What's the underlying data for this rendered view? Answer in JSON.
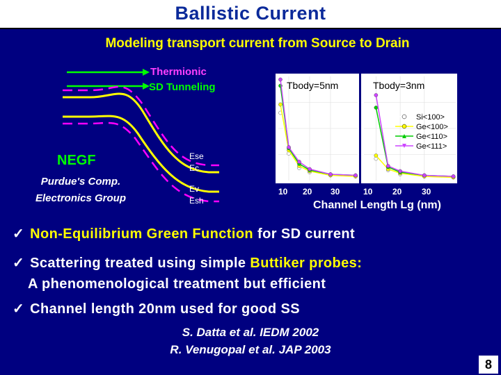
{
  "slide": {
    "title": "Ballistic Current",
    "subtitle": "Modeling transport current from Source to Drain",
    "page_number": "8"
  },
  "band_diagram": {
    "arrow_labels": [
      "Thermionic",
      "SD Tunneling"
    ],
    "method_label": "NEGF",
    "group_label_line1": "Purdue's Comp.",
    "group_label_line2": "Electronics Group",
    "band_labels": [
      "Ese",
      "Ec",
      "Ev",
      "Esh"
    ],
    "colors": {
      "arrow": "#00ff00",
      "band": "#ffff00",
      "dashed": "#ff00ff",
      "text": "#00ff00"
    }
  },
  "chart_data": {
    "type": "line",
    "xlabel": "Channel Length Lg (nm)",
    "panels": [
      {
        "label": "Tbody=5nm",
        "x_ticks": [
          "10",
          "20",
          "30"
        ]
      },
      {
        "label": "Tbody=3nm",
        "x_ticks": [
          "10",
          "20",
          "30"
        ]
      }
    ],
    "legend_position": "top-right",
    "series": [
      {
        "name": "Si<100>",
        "color": "#ffffff",
        "panel1": [
          [
            6,
            65
          ],
          [
            10,
            26
          ],
          [
            15,
            12
          ],
          [
            20,
            8
          ],
          [
            30,
            5
          ],
          [
            42,
            4
          ]
        ],
        "panel2": [
          [
            10,
            21
          ],
          [
            15,
            10
          ],
          [
            20,
            6
          ],
          [
            30,
            4
          ],
          [
            42,
            3
          ]
        ]
      },
      {
        "name": "Ge<100>",
        "color": "#ffff00",
        "panel1": [
          [
            6,
            73
          ],
          [
            10,
            29
          ],
          [
            15,
            14
          ],
          [
            20,
            9
          ],
          [
            30,
            5
          ],
          [
            42,
            4
          ]
        ],
        "panel2": [
          [
            10,
            24
          ],
          [
            15,
            11
          ],
          [
            20,
            7
          ],
          [
            30,
            4
          ],
          [
            42,
            3
          ]
        ]
      },
      {
        "name": "Ge<110>",
        "color": "#00cc00",
        "panel1": [
          [
            6,
            91
          ],
          [
            10,
            31
          ],
          [
            15,
            16
          ],
          [
            20,
            10
          ],
          [
            30,
            6
          ],
          [
            42,
            5
          ]
        ],
        "panel2": [
          [
            10,
            70
          ],
          [
            15,
            13
          ],
          [
            20,
            8
          ],
          [
            30,
            5
          ],
          [
            42,
            4
          ]
        ]
      },
      {
        "name": "Ge<111>",
        "color": "#cc44ff",
        "panel1": [
          [
            6,
            97
          ],
          [
            10,
            32
          ],
          [
            15,
            18
          ],
          [
            20,
            11
          ],
          [
            30,
            6
          ],
          [
            42,
            5
          ]
        ],
        "panel2": [
          [
            10,
            82
          ],
          [
            15,
            14
          ],
          [
            20,
            9
          ],
          [
            30,
            5
          ],
          [
            42,
            4
          ]
        ]
      }
    ]
  },
  "bullets": {
    "b1_yellow": "Non-Equilibrium Green Function",
    "b1_rest": "for SD current",
    "b2_prefix": "Scattering treated using simple",
    "b2_yellow": "Buttiker probes:",
    "b2_line2": "A phenomenological treatment but efficient",
    "b3": "Channel length 20nm used for good SS",
    "check": "✓"
  },
  "references": {
    "ref1": "S. Datta et al. IEDM 2002",
    "ref2": "R. Venugopal et al. JAP 2003"
  }
}
